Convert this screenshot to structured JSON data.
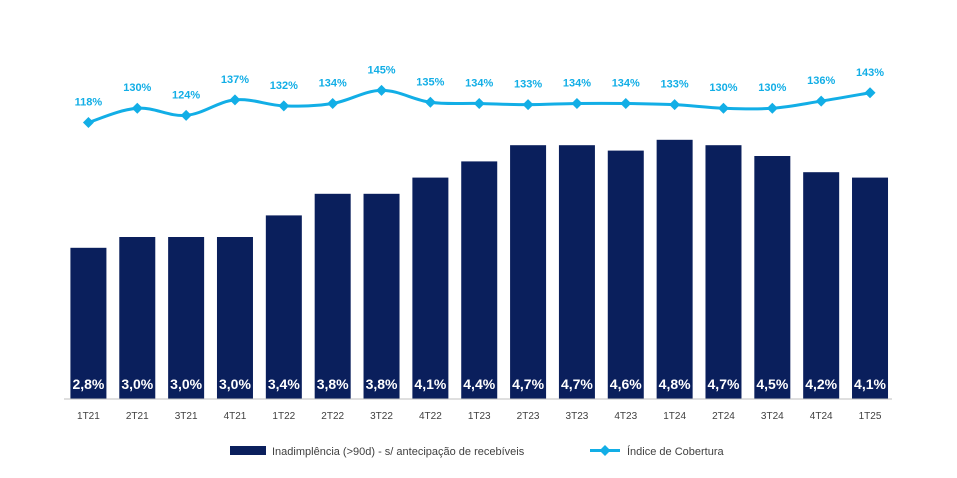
{
  "chart_data": {
    "type": "bar",
    "categories": [
      "1T21",
      "2T21",
      "3T21",
      "4T21",
      "1T22",
      "2T22",
      "3T22",
      "4T22",
      "1T23",
      "2T23",
      "3T23",
      "4T23",
      "1T24",
      "2T24",
      "3T24",
      "4T24",
      "1T25"
    ],
    "series": [
      {
        "name": "Inadimplência (>90d) - s/ antecipação de recebíveis",
        "type": "bar",
        "values": [
          2.8,
          3.0,
          3.0,
          3.0,
          3.4,
          3.8,
          3.8,
          4.1,
          4.4,
          4.7,
          4.7,
          4.6,
          4.8,
          4.7,
          4.5,
          4.2,
          4.1
        ],
        "labels": [
          "2,8%",
          "3,0%",
          "3,0%",
          "3,0%",
          "3,4%",
          "3,8%",
          "3,8%",
          "4,1%",
          "4,4%",
          "4,7%",
          "4,7%",
          "4,6%",
          "4,8%",
          "4,7%",
          "4,5%",
          "4,2%",
          "4,1%"
        ],
        "color": "#0a1f5c"
      },
      {
        "name": "Índice de Cobertura",
        "type": "line",
        "values": [
          118,
          130,
          124,
          137,
          132,
          134,
          145,
          135,
          134,
          133,
          134,
          134,
          133,
          130,
          130,
          136,
          143
        ],
        "labels": [
          "118%",
          "130%",
          "124%",
          "137%",
          "132%",
          "134%",
          "145%",
          "135%",
          "134%",
          "133%",
          "134%",
          "134%",
          "133%",
          "130%",
          "130%",
          "136%",
          "143%"
        ],
        "color": "#12aee6"
      }
    ],
    "legend_position": "bottom",
    "grid": false
  }
}
